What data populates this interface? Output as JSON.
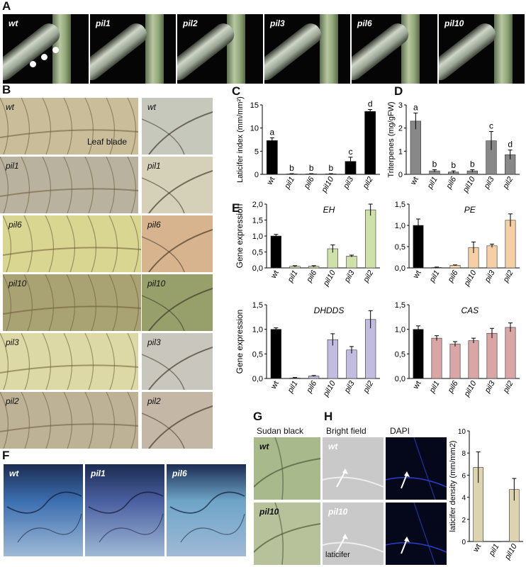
{
  "panels": {
    "A": "A",
    "B": "B",
    "C": "C",
    "D": "D",
    "E": "E",
    "F": "F",
    "G": "G",
    "H": "H"
  },
  "panel_a": {
    "labels": [
      "wt",
      "pil1",
      "pil2",
      "pil3",
      "pil6",
      "pil10"
    ]
  },
  "panel_b": {
    "rows": [
      "wt",
      "pil1",
      "pil6",
      "pil10",
      "pil3",
      "pil2"
    ],
    "leaf_blade_label": "Leaf blade"
  },
  "panel_f": {
    "labels": [
      "wt",
      "pil1",
      "pil6"
    ]
  },
  "panel_g": {
    "title": "Sudan black",
    "labels": [
      "wt",
      "pil10"
    ]
  },
  "panel_h": {
    "bright_field": "Bright field",
    "dapi": "DAPI",
    "labels": [
      "wt",
      "pil10"
    ],
    "laticifer_label": "laticifer"
  },
  "chart_data": [
    {
      "id": "C",
      "type": "bar",
      "categories": [
        "wt",
        "pil1",
        "pil6",
        "pil10",
        "pil3",
        "pil2"
      ],
      "values": [
        7.3,
        0.1,
        0.1,
        0.1,
        2.8,
        13.6
      ],
      "errors": [
        0.6,
        0.05,
        0.05,
        0.05,
        0.9,
        0.4
      ],
      "letters": [
        "a",
        "b",
        "b",
        "b",
        "c",
        "d"
      ],
      "ylabel": "Laticifer index (mm/mm²)",
      "ylim": [
        0,
        15
      ],
      "yticks": [
        "0",
        "5",
        "10",
        "15"
      ],
      "colors": [
        "#000000",
        "#000000",
        "#000000",
        "#000000",
        "#000000",
        "#000000"
      ]
    },
    {
      "id": "D",
      "type": "bar",
      "categories": [
        "wt",
        "pil1",
        "pil6",
        "pil10",
        "pil3",
        "pil2"
      ],
      "values": [
        2.3,
        0.15,
        0.1,
        0.15,
        1.45,
        0.85
      ],
      "errors": [
        0.35,
        0.05,
        0.05,
        0.05,
        0.4,
        0.2
      ],
      "letters": [
        "a",
        "b",
        "b",
        "b",
        "c",
        "d"
      ],
      "ylabel": "Triterpenes (mg/gFW)",
      "ylim": [
        0,
        3
      ],
      "yticks": [
        "0",
        "1",
        "2",
        "3"
      ],
      "colors": [
        "#888888",
        "#888888",
        "#888888",
        "#888888",
        "#888888",
        "#888888"
      ]
    },
    {
      "id": "E-EH",
      "type": "bar",
      "title": "EH",
      "categories": [
        "wt",
        "pil1",
        "pil6",
        "pil10",
        "pil3",
        "pil2"
      ],
      "values": [
        1.0,
        0.05,
        0.05,
        0.6,
        0.37,
        1.82
      ],
      "errors": [
        0.05,
        0.02,
        0.02,
        0.12,
        0.03,
        0.18
      ],
      "ylabel": "Gene expression",
      "ylim": [
        0,
        2
      ],
      "yticks": [
        "0,0",
        "0,5",
        "1,0",
        "1,5",
        "2,0"
      ],
      "colors": [
        "#000000",
        "#cfe0a8",
        "#cfe0a8",
        "#cfe0a8",
        "#cfe0a8",
        "#cfe0a8"
      ]
    },
    {
      "id": "E-PE",
      "type": "bar",
      "title": "PE",
      "categories": [
        "wt",
        "pil1",
        "pil6",
        "pil10",
        "pil3",
        "pil2"
      ],
      "values": [
        1.0,
        0.01,
        0.06,
        0.48,
        0.52,
        1.12
      ],
      "errors": [
        0.15,
        0.01,
        0.01,
        0.13,
        0.04,
        0.15
      ],
      "ylabel": "",
      "ylim": [
        0,
        1.5
      ],
      "yticks": [
        "0,0",
        "0,5",
        "1,0",
        "1,5"
      ],
      "colors": [
        "#000000",
        "#f6d0a4",
        "#f6d0a4",
        "#f6d0a4",
        "#f6d0a4",
        "#f6d0a4"
      ]
    },
    {
      "id": "E-DHDDS",
      "type": "bar",
      "title": "DHDDS",
      "categories": [
        "wt",
        "pil1",
        "pil6",
        "pil10",
        "pil3",
        "pil2"
      ],
      "values": [
        1.0,
        0.01,
        0.05,
        0.79,
        0.58,
        1.2
      ],
      "errors": [
        0.03,
        0.01,
        0.01,
        0.12,
        0.07,
        0.18
      ],
      "ylabel": "Gene expression",
      "ylim": [
        0,
        1.5
      ],
      "yticks": [
        "0,0",
        "0,5",
        "1,0",
        "1,5"
      ],
      "colors": [
        "#000000",
        "#c2bce0",
        "#c2bce0",
        "#c2bce0",
        "#c2bce0",
        "#c2bce0"
      ]
    },
    {
      "id": "E-CAS",
      "type": "bar",
      "title": "CAS",
      "categories": [
        "wt",
        "pil1",
        "pil6",
        "pil10",
        "pil3",
        "pil2"
      ],
      "values": [
        1.0,
        0.82,
        0.7,
        0.77,
        0.92,
        1.04
      ],
      "errors": [
        0.07,
        0.05,
        0.05,
        0.05,
        0.1,
        0.09
      ],
      "ylabel": "",
      "ylim": [
        0,
        1.5
      ],
      "yticks": [
        "0,0",
        "0,5",
        "1,0",
        "1,5"
      ],
      "colors": [
        "#000000",
        "#d9a5a5",
        "#d9a5a5",
        "#d9a5a5",
        "#d9a5a5",
        "#d9a5a5"
      ]
    },
    {
      "id": "H",
      "type": "bar",
      "categories": [
        "wt",
        "pil1",
        "pil10"
      ],
      "values": [
        6.7,
        0,
        4.7
      ],
      "errors": [
        1.4,
        0,
        1.0
      ],
      "ylabel": "laticifer density (mm/mm2)",
      "ylim": [
        0,
        10
      ],
      "yticks": [
        "0",
        "2",
        "4",
        "6",
        "8",
        "10"
      ],
      "colors": [
        "#ddd3ae",
        "#ddd3ae",
        "#ddd3ae"
      ]
    }
  ]
}
